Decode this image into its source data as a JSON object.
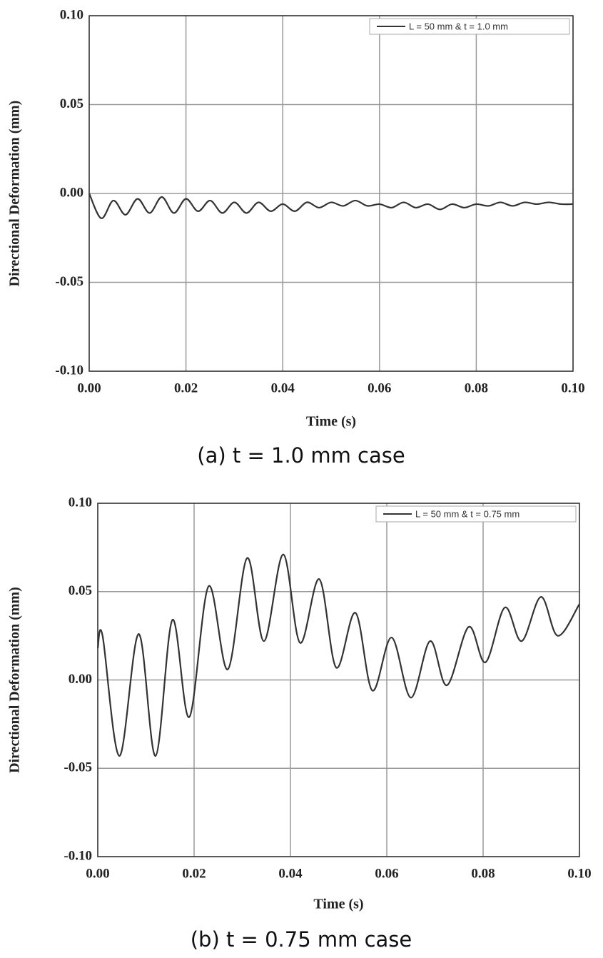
{
  "chart_data": [
    {
      "type": "line",
      "caption": "(a) t = 1.0 mm case",
      "xlabel": "Time (s)",
      "ylabel": "Directional Deformation (mm)",
      "xlim": [
        0,
        0.1
      ],
      "ylim": [
        -0.1,
        0.1
      ],
      "xticks": [
        {
          "value": 0,
          "label": "0.00"
        },
        0.02,
        0.04,
        0.06,
        0.08,
        {
          "value": 0.1,
          "label": "0.10"
        }
      ],
      "yticks": [
        {
          "value": -0.1,
          "label": "-0.10"
        },
        -0.05,
        {
          "value": 0,
          "label": "0.00"
        },
        0.05,
        {
          "value": 0.1,
          "label": "0.10"
        }
      ],
      "grid": true,
      "legend": "upper right",
      "x": [
        0,
        0.0025,
        0.005,
        0.0075,
        0.01,
        0.0125,
        0.015,
        0.0175,
        0.02,
        0.0225,
        0.025,
        0.0275,
        0.03,
        0.0325,
        0.035,
        0.0375,
        0.04,
        0.0425,
        0.045,
        0.0475,
        0.05,
        0.0525,
        0.055,
        0.0575,
        0.06,
        0.0625,
        0.065,
        0.0675,
        0.07,
        0.0725,
        0.075,
        0.0775,
        0.08,
        0.0825,
        0.085,
        0.0875,
        0.09,
        0.0925,
        0.095,
        0.0975,
        0.1
      ],
      "series": [
        {
          "name": "L = 50 mm & t = 1.0 mm",
          "color": "#333333",
          "values": [
            0,
            -0.014,
            -0.004,
            -0.012,
            -0.003,
            -0.011,
            -0.002,
            -0.011,
            -0.003,
            -0.01,
            -0.004,
            -0.011,
            -0.005,
            -0.011,
            -0.005,
            -0.01,
            -0.006,
            -0.01,
            -0.005,
            -0.008,
            -0.005,
            -0.007,
            -0.004,
            -0.007,
            -0.006,
            -0.008,
            -0.005,
            -0.008,
            -0.006,
            -0.009,
            -0.006,
            -0.008,
            -0.006,
            -0.007,
            -0.005,
            -0.007,
            -0.005,
            -0.006,
            -0.005,
            -0.006,
            -0.006
          ]
        }
      ]
    },
    {
      "type": "line",
      "caption": "(b) t = 0.75 mm case",
      "xlabel": "Time (s)",
      "ylabel": "Directional Deformation (mm)",
      "xlim": [
        0,
        0.1
      ],
      "ylim": [
        -0.1,
        0.1
      ],
      "xticks": [
        {
          "value": 0,
          "label": "0.00"
        },
        0.02,
        0.04,
        0.06,
        0.08,
        {
          "value": 0.1,
          "label": "0.10"
        }
      ],
      "yticks": [
        {
          "value": -0.1,
          "label": "-0.10"
        },
        -0.05,
        {
          "value": 0,
          "label": "0.00"
        },
        0.05,
        {
          "value": 0.1,
          "label": "0.10"
        }
      ],
      "grid": true,
      "legend": "upper right",
      "x": [
        0,
        0.001,
        0.0045,
        0.0085,
        0.012,
        0.0155,
        0.019,
        0.023,
        0.027,
        0.031,
        0.0345,
        0.0385,
        0.042,
        0.046,
        0.0495,
        0.0535,
        0.057,
        0.061,
        0.065,
        0.069,
        0.0725,
        0.077,
        0.0805,
        0.0845,
        0.088,
        0.092,
        0.0955,
        0.1
      ],
      "series": [
        {
          "name": "L = 50 mm & t = 0.75 mm",
          "color": "#333333",
          "values": [
            0.018,
            0.025,
            -0.043,
            0.026,
            -0.043,
            0.034,
            -0.021,
            0.053,
            0.006,
            0.069,
            0.022,
            0.071,
            0.021,
            0.057,
            0.007,
            0.038,
            -0.006,
            0.024,
            -0.01,
            0.022,
            -0.003,
            0.03,
            0.01,
            0.041,
            0.022,
            0.047,
            0.025,
            0.043
          ]
        }
      ]
    }
  ]
}
